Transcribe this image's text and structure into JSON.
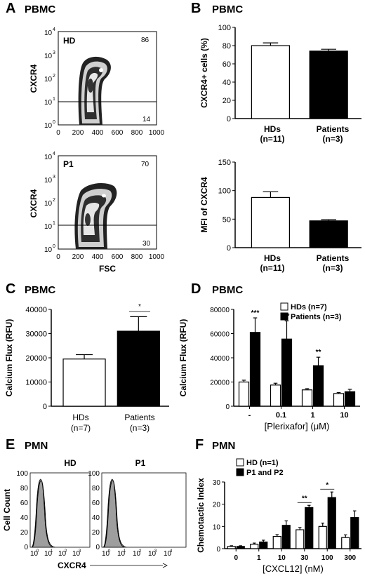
{
  "panels": {
    "A": {
      "letter": "A",
      "title": "PBMC",
      "top": {
        "sample": "HD",
        "upper_pct": "86",
        "lower_pct": "14"
      },
      "bottom": {
        "sample": "P1",
        "upper_pct": "70",
        "lower_pct": "30"
      },
      "ylabel": "CXCR4",
      "xlabel": "FSC",
      "xticks": [
        "0",
        "200",
        "400",
        "600",
        "800",
        "1000"
      ],
      "yticks": [
        "10^0",
        "10^1",
        "10^2",
        "10^3",
        "10^4"
      ]
    },
    "B": {
      "letter": "B",
      "title": "PBMC",
      "xticklabels": [
        [
          "HDs",
          "(n=11)"
        ],
        [
          "Patients",
          "(n=3)"
        ]
      ]
    },
    "C": {
      "letter": "C",
      "title": "PBMC",
      "xticklabels": [
        [
          "HDs",
          "(n=7)"
        ],
        [
          "Patients",
          "(n=3)"
        ]
      ],
      "sig": "*"
    },
    "D": {
      "letter": "D",
      "title": "PBMC",
      "legend": [
        "HDs (n=7)",
        "Patients (n=3)"
      ],
      "sig": [
        "***",
        "**",
        "**"
      ]
    },
    "E": {
      "letter": "E",
      "title": "PMN",
      "left_sample": "HD",
      "right_sample": "P1",
      "ylabel": "Cell Count",
      "xlabel": "CXCR4",
      "yticks": [
        "0",
        "20",
        "40",
        "60",
        "80",
        "100"
      ]
    },
    "F": {
      "letter": "F",
      "title": "PMN",
      "legend": [
        "HD (n=1)",
        "P1 and P2"
      ],
      "sig": [
        "**",
        "*"
      ]
    }
  },
  "chart_data": [
    {
      "panel": "B-top",
      "type": "bar",
      "categories": [
        "HDs (n=11)",
        "Patients (n=3)"
      ],
      "values": [
        80,
        74
      ],
      "errors": [
        3,
        2
      ],
      "colors": [
        "#ffffff",
        "#000000"
      ],
      "ylabel": "CXCR4+ cells (%)",
      "ylim": [
        0,
        100
      ],
      "yticks": [
        "0",
        "20",
        "40",
        "60",
        "80",
        "100"
      ]
    },
    {
      "panel": "B-bottom",
      "type": "bar",
      "categories": [
        "HDs (n=11)",
        "Patients (n=3)"
      ],
      "values": [
        88,
        47
      ],
      "errors": [
        10,
        2
      ],
      "colors": [
        "#ffffff",
        "#000000"
      ],
      "ylabel": "MFI of CXCR4",
      "ylim": [
        0,
        150
      ],
      "yticks": [
        "0",
        "50",
        "100",
        "150"
      ]
    },
    {
      "panel": "C",
      "type": "bar",
      "categories": [
        "HDs (n=7)",
        "Patients (n=3)"
      ],
      "values": [
        19500,
        31000
      ],
      "errors": [
        1800,
        6000
      ],
      "colors": [
        "#ffffff",
        "#000000"
      ],
      "ylabel": "Calcium Flux (RFU)",
      "ylim": [
        0,
        40000
      ],
      "yticks": [
        "0",
        "10000",
        "20000",
        "30000",
        "40000"
      ]
    },
    {
      "panel": "D",
      "type": "bar",
      "categories": [
        "-",
        "0.1",
        "1",
        "10"
      ],
      "series": [
        {
          "name": "HDs (n=7)",
          "values": [
            20000,
            17500,
            13500,
            10500
          ],
          "errors": [
            1500,
            1500,
            1000,
            800
          ],
          "color": "#ffffff"
        },
        {
          "name": "Patients (n=3)",
          "values": [
            61000,
            55500,
            33500,
            12000
          ],
          "errors": [
            12000,
            15000,
            7000,
            2000
          ],
          "color": "#000000"
        }
      ],
      "xlabel": "[Plerixafor] (μM)",
      "ylabel": "Calcium Flux (RFU)",
      "ylim": [
        0,
        80000
      ],
      "yticks": [
        "0",
        "20000",
        "40000",
        "60000",
        "80000"
      ]
    },
    {
      "panel": "F",
      "type": "bar",
      "categories": [
        "0",
        "1",
        "10",
        "30",
        "100",
        "300"
      ],
      "series": [
        {
          "name": "HD (n=1)",
          "values": [
            1,
            2,
            5.5,
            8.5,
            10,
            5
          ],
          "errors": [
            0.3,
            0.5,
            0.8,
            1,
            1.5,
            1.2
          ],
          "color": "#ffffff"
        },
        {
          "name": "P1 and P2",
          "values": [
            1,
            3,
            10.5,
            18.5,
            23,
            14
          ],
          "errors": [
            0.3,
            0.8,
            2,
            1,
            2.5,
            3
          ],
          "color": "#000000"
        }
      ],
      "xlabel": "[CXCL12] (nM)",
      "ylabel": "Chemotactic Index",
      "ylim": [
        0,
        30
      ],
      "yticks": [
        "0",
        "10",
        "20",
        "30"
      ]
    }
  ]
}
